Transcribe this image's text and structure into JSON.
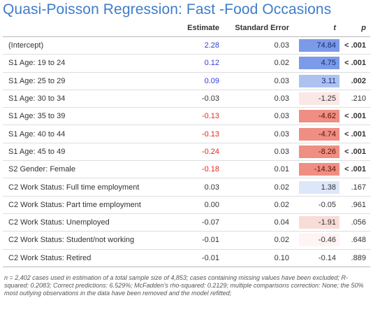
{
  "title": "Quasi-Poisson Regression: Fast -Food Occasions",
  "columns": {
    "estimate": "Estimate",
    "se": "Standard Error",
    "t": "t",
    "p": "p"
  },
  "colors": {
    "positive": "#2f3fd6",
    "negative": "#e0281e",
    "neutral": "#333333"
  },
  "rows": [
    {
      "label": "(Intercept)",
      "estimate": "2.28",
      "se": "0.03",
      "t": "74.84",
      "p": "< .001",
      "sign": "positive",
      "t_bg": "#7b9ae8",
      "t_color": "#1a2a70",
      "p_bold": true
    },
    {
      "label": "S1 Age: 19 to 24",
      "estimate": "0.12",
      "se": "0.02",
      "t": "4.75",
      "p": "< .001",
      "sign": "positive",
      "t_bg": "#7b9ae8",
      "t_color": "#1a2a70",
      "p_bold": true
    },
    {
      "label": "S1 Age: 25 to 29",
      "estimate": "0.09",
      "se": "0.03",
      "t": "3.11",
      "p": ".002",
      "sign": "positive",
      "t_bg": "#aec2f2",
      "t_color": "#1a2a70",
      "p_bold": true
    },
    {
      "label": "S1 Age: 30 to 34",
      "estimate": "-0.03",
      "se": "0.03",
      "t": "-1.25",
      "p": ".210",
      "sign": "neutral",
      "t_bg": "#fbe8e6",
      "t_color": "#333333",
      "p_bold": false
    },
    {
      "label": "S1 Age: 35 to 39",
      "estimate": "-0.13",
      "se": "0.03",
      "t": "-4.62",
      "p": "< .001",
      "sign": "negative",
      "t_bg": "#ef8e82",
      "t_color": "#5a1008",
      "p_bold": true
    },
    {
      "label": "S1 Age: 40 to 44",
      "estimate": "-0.13",
      "se": "0.03",
      "t": "-4.74",
      "p": "< .001",
      "sign": "negative",
      "t_bg": "#ef8e82",
      "t_color": "#5a1008",
      "p_bold": true
    },
    {
      "label": "S1 Age: 45 to 49",
      "estimate": "-0.24",
      "se": "0.03",
      "t": "-8.26",
      "p": "< .001",
      "sign": "negative",
      "t_bg": "#ef8e82",
      "t_color": "#5a1008",
      "p_bold": true
    },
    {
      "label": "S2 Gender: Female",
      "estimate": "-0.18",
      "se": "0.01",
      "t": "-14.34",
      "p": "< .001",
      "sign": "negative",
      "t_bg": "#ef8e82",
      "t_color": "#5a1008",
      "p_bold": true
    },
    {
      "label": "C2 Work Status: Full time employment",
      "estimate": "0.03",
      "se": "0.02",
      "t": "1.38",
      "p": ".167",
      "sign": "neutral",
      "t_bg": "#dde7fa",
      "t_color": "#333333",
      "p_bold": false
    },
    {
      "label": "C2 Work Status: Part time employment",
      "estimate": "0.00",
      "se": "0.02",
      "t": "-0.05",
      "p": ".961",
      "sign": "neutral",
      "t_bg": "#ffffff",
      "t_color": "#333333",
      "p_bold": false
    },
    {
      "label": "C2 Work Status: Unemployed",
      "estimate": "-0.07",
      "se": "0.04",
      "t": "-1.91",
      "p": ".056",
      "sign": "neutral",
      "t_bg": "#f8dcd8",
      "t_color": "#333333",
      "p_bold": false
    },
    {
      "label": "C2 Work Status: Student/not working",
      "estimate": "-0.01",
      "se": "0.02",
      "t": "-0.46",
      "p": ".648",
      "sign": "neutral",
      "t_bg": "#fdf4f3",
      "t_color": "#333333",
      "p_bold": false
    },
    {
      "label": "C2 Work Status: Retired",
      "estimate": "-0.01",
      "se": "0.10",
      "t": "-0.14",
      "p": ".889",
      "sign": "neutral",
      "t_bg": "#ffffff",
      "t_color": "#333333",
      "p_bold": false
    }
  ],
  "footnote": "n = 2,402 cases used in estimation of a total sample size of 4,853; cases containing missing values have been excluded; R-squared: 0.2083; Correct predictions: 6.529%; McFadden's rho-squared: 0.2129; multiple comparisons correction: None; the 50% most outlying observations in the data have been removed and the model refitted;"
}
